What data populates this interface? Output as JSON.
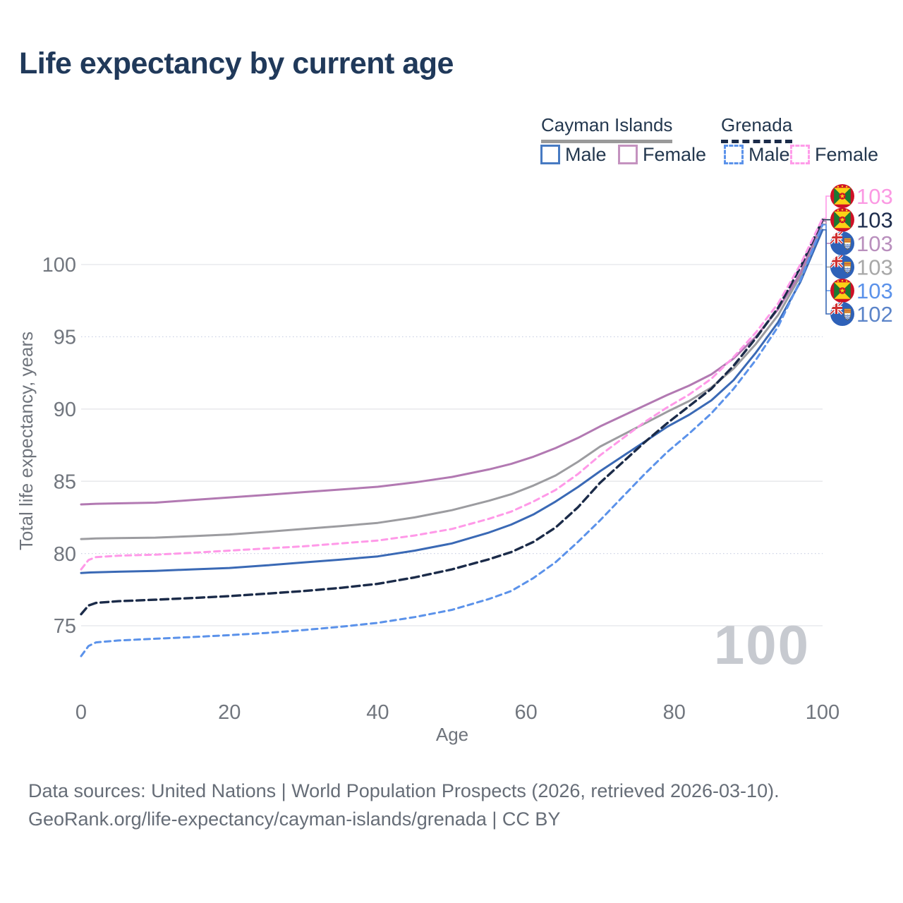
{
  "header": {
    "title": "Life expectancy by current age"
  },
  "legend": {
    "groups": [
      {
        "label": "Cayman Islands",
        "line_style": "solid",
        "underline_color": "#9a9a9a",
        "items": [
          {
            "label": "Male",
            "color": "#477ac2",
            "dashed": false
          },
          {
            "label": "Female",
            "color": "#c492bf",
            "dashed": false
          }
        ]
      },
      {
        "label": "Grenada",
        "line_style": "dashed",
        "underline_color": "#1b2b49",
        "items": [
          {
            "label": "Male",
            "color": "#5b92ea",
            "dashed": true
          },
          {
            "label": "Female",
            "color": "#ff9ce9",
            "dashed": true
          }
        ]
      }
    ]
  },
  "chart_data": {
    "type": "line",
    "title": "Life expectancy by current age",
    "xlabel": "Age",
    "ylabel": "Total life expectancy, years",
    "xticks": [
      0,
      20,
      40,
      60,
      80,
      100
    ],
    "yticks": [
      100,
      95,
      90,
      85,
      80,
      75
    ],
    "xlim": [
      0,
      100
    ],
    "ylim": [
      72,
      104.5
    ],
    "grid": "horizontal only, light gray; dotted style at 95 and 80",
    "legend_position": "top-right",
    "age_watermark": "100",
    "x_ages": [
      0,
      1,
      2,
      5,
      10,
      15,
      20,
      25,
      30,
      35,
      40,
      45,
      50,
      55,
      58,
      61,
      64,
      67,
      70,
      73,
      76,
      79,
      82,
      85,
      88,
      91,
      94,
      97,
      100
    ],
    "series": [
      {
        "id": "grenada-female",
        "name": "Grenada — Female",
        "country": "Grenada",
        "sex": "Female",
        "line_style": "dashed",
        "color": "#ff99e8",
        "label_color": "#fb99e3",
        "flag": "grenada",
        "end_label": "103",
        "width": 3,
        "y": [
          78.9,
          79.55,
          79.75,
          79.85,
          79.92,
          80.05,
          80.2,
          80.35,
          80.5,
          80.7,
          80.9,
          81.25,
          81.7,
          82.4,
          82.9,
          83.6,
          84.4,
          85.5,
          86.8,
          87.95,
          89.1,
          90.1,
          91.0,
          92.1,
          93.6,
          95.3,
          97.3,
          100.0,
          103.2
        ]
      },
      {
        "id": "grenada-total",
        "name": "Grenada — Total",
        "country": "Grenada",
        "sex": "Both sexes",
        "line_style": "dashed",
        "color": "#1b2b49",
        "label_color": "#1e2d4d",
        "flag": "grenada",
        "end_label": "103",
        "width": 3.4,
        "y": [
          75.8,
          76.4,
          76.58,
          76.7,
          76.8,
          76.92,
          77.05,
          77.22,
          77.4,
          77.62,
          77.9,
          78.35,
          78.9,
          79.6,
          80.1,
          80.8,
          81.8,
          83.2,
          84.9,
          86.3,
          87.7,
          89.0,
          90.2,
          91.4,
          93.0,
          94.9,
          97.0,
          99.8,
          103.1
        ]
      },
      {
        "id": "cayman-islands-female",
        "name": "Cayman Islands — Female",
        "country": "Cayman Islands",
        "sex": "Female",
        "line_style": "solid",
        "color": "#b279b2",
        "label_color": "#b98fbd",
        "flag": "cayman",
        "end_label": "103",
        "width": 3,
        "y": [
          83.4,
          83.42,
          83.44,
          83.47,
          83.52,
          83.7,
          83.88,
          84.06,
          84.25,
          84.43,
          84.62,
          84.92,
          85.3,
          85.82,
          86.2,
          86.7,
          87.3,
          88.0,
          88.8,
          89.52,
          90.24,
          90.96,
          91.62,
          92.4,
          93.5,
          95.0,
          96.9,
          99.4,
          103.0
        ]
      },
      {
        "id": "cayman-islands-total",
        "name": "Cayman Islands — Total",
        "country": "Cayman Islands",
        "sex": "Both sexes",
        "line_style": "solid",
        "color": "#9c9ca0",
        "label_color": "#a8a8a8",
        "flag": "cayman",
        "end_label": "103",
        "width": 3,
        "y": [
          81.0,
          81.02,
          81.04,
          81.07,
          81.1,
          81.2,
          81.32,
          81.5,
          81.7,
          81.9,
          82.12,
          82.5,
          83.0,
          83.65,
          84.1,
          84.7,
          85.4,
          86.35,
          87.4,
          88.2,
          89.0,
          89.8,
          90.55,
          91.5,
          92.8,
          94.5,
          96.5,
          99.2,
          102.8
        ]
      },
      {
        "id": "grenada-male",
        "name": "Grenada — Male",
        "country": "Grenada",
        "sex": "Male",
        "line_style": "dashed",
        "color": "#5b92ea",
        "label_color": "#5b92ea",
        "flag": "grenada",
        "end_label": "103",
        "width": 3,
        "y": [
          72.9,
          73.6,
          73.85,
          73.98,
          74.1,
          74.22,
          74.35,
          74.5,
          74.7,
          74.93,
          75.2,
          75.6,
          76.1,
          76.85,
          77.4,
          78.3,
          79.4,
          80.8,
          82.3,
          83.9,
          85.5,
          87.0,
          88.3,
          89.7,
          91.4,
          93.4,
          95.7,
          98.9,
          102.75
        ]
      },
      {
        "id": "cayman-islands-male",
        "name": "Cayman Islands — Male",
        "country": "Cayman Islands",
        "sex": "Male",
        "line_style": "solid",
        "color": "#3a69b5",
        "label_color": "#5b84c9",
        "flag": "cayman",
        "end_label": "102",
        "width": 3,
        "y": [
          78.65,
          78.68,
          78.7,
          78.74,
          78.8,
          78.9,
          79.0,
          79.18,
          79.38,
          79.58,
          79.8,
          80.2,
          80.7,
          81.45,
          82.0,
          82.7,
          83.6,
          84.6,
          85.7,
          86.72,
          87.74,
          88.76,
          89.6,
          90.6,
          92.0,
          93.9,
          96.0,
          98.8,
          102.4
        ]
      }
    ]
  },
  "footer": {
    "line1": "Data sources: United Nations | World Population Prospects (2026, retrieved 2026-03-10).",
    "line2": "GeoRank.org/life-expectancy/cayman-islands/grenada | CC BY"
  }
}
